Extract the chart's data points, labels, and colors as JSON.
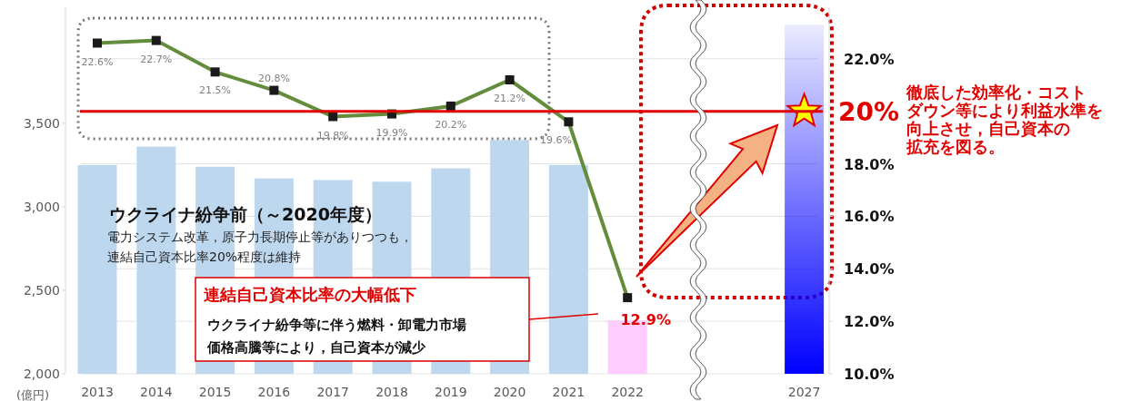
{
  "chart_data": {
    "type": "bar",
    "categories": [
      "2013",
      "2014",
      "2015",
      "2016",
      "2017",
      "2018",
      "2019",
      "2020",
      "2021",
      "2022",
      null,
      null,
      "2027"
    ],
    "ylabel": "(億円)",
    "ylim": [
      2000,
      4200
    ],
    "yticks": [
      {
        "value": 2000,
        "label": "2,000"
      },
      {
        "value": 2500,
        "label": "2,500"
      },
      {
        "value": 3000,
        "label": "3,000"
      },
      {
        "value": 3500,
        "label": "3,500"
      }
    ],
    "y2lim": [
      10,
      24
    ],
    "y2ticks": [
      {
        "value": 10,
        "label": "10.0%"
      },
      {
        "value": 12,
        "label": "12.0%"
      },
      {
        "value": 14,
        "label": "14.0%"
      },
      {
        "value": 16,
        "label": "16.0%"
      },
      {
        "value": 18,
        "label": "18.0%"
      },
      {
        "value": 22,
        "label": "22.0%"
      }
    ],
    "grid": true,
    "series": [
      {
        "type": "bar",
        "axis": "y",
        "colors": [
          "#bdd7ee",
          "#bdd7ee",
          "#bdd7ee",
          "#bdd7ee",
          "#bdd7ee",
          "#bdd7ee",
          "#bdd7ee",
          "#bdd7ee",
          "#bdd7ee",
          "#ffccff",
          null,
          null,
          null
        ],
        "values": [
          3250,
          3360,
          3240,
          3170,
          3160,
          3150,
          3230,
          3400,
          3250,
          2320,
          null,
          null,
          null
        ]
      },
      {
        "type": "bar",
        "axis": "y2",
        "color": "#0000ff",
        "values": [
          null,
          null,
          null,
          null,
          null,
          null,
          null,
          null,
          null,
          null,
          null,
          null,
          23.3
        ]
      },
      {
        "type": "line",
        "axis": "y2",
        "color": "#638c3c",
        "marker": "square",
        "values": [
          22.6,
          22.7,
          21.5,
          20.8,
          19.8,
          19.9,
          20.2,
          21.2,
          19.6,
          12.9,
          null,
          null,
          null
        ],
        "value_labels": [
          "22.6%",
          "22.7%",
          "21.5%",
          "20.8%",
          "19.8%",
          "19.9%",
          "20.2%",
          "21.2%",
          "19.6%",
          "12.9%",
          null,
          null,
          null
        ]
      },
      {
        "type": "scatter",
        "axis": "y2",
        "color": "#ffff00",
        "marker": "star",
        "values": [
          null,
          null,
          null,
          null,
          null,
          null,
          null,
          null,
          null,
          null,
          null,
          null,
          20
        ]
      }
    ],
    "ref_lines": [
      {
        "axis": "y2",
        "value": 20,
        "label": "20%",
        "color": "#e00000"
      }
    ],
    "annotations": [
      "ウクライナ紛争前（～2020年度）",
      "電力システム改革，原子力長期停止等がありつつも，",
      "連結自己資本比率20%程度は維持",
      "連結自己資本比率の大幅低下",
      "ウクライナ紛争等に伴う燃料・卸電力市場",
      "価格高騰等により，自己資本が減少",
      "徹底した効率化・コスト",
      "ダウン等により利益水準を",
      "向上させ，自己資本の",
      "拡充を図る。"
    ]
  }
}
